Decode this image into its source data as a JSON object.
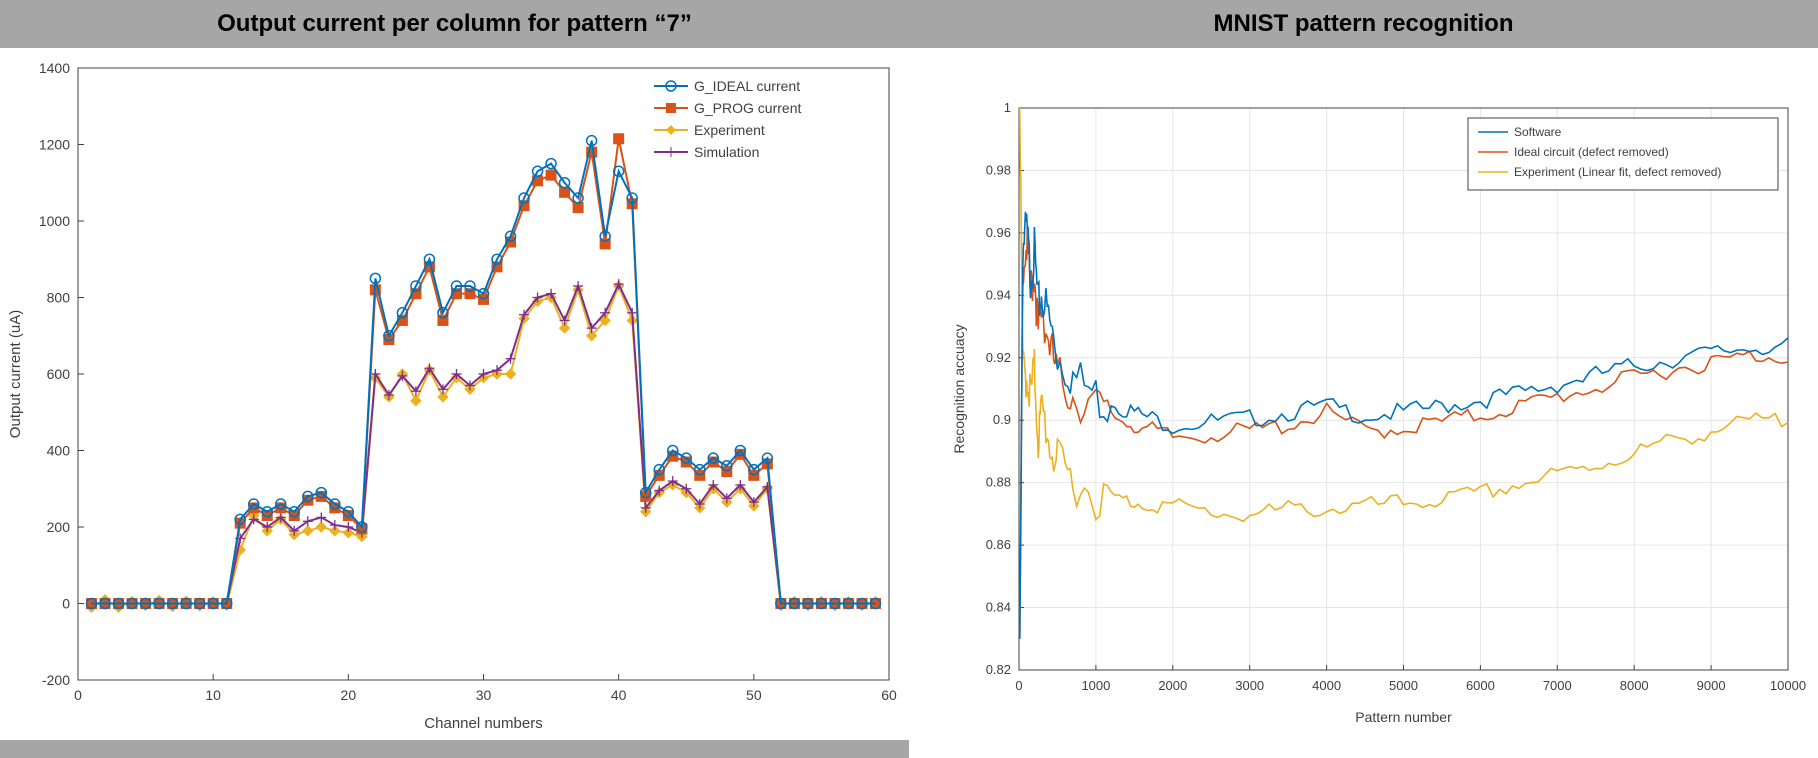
{
  "header": {
    "left": "Output current per column for pattern “7”",
    "right": "MNIST pattern recognition"
  },
  "left_chart": {
    "type": "line",
    "xlabel": "Channel numbers",
    "ylabel": "Output current (uA)",
    "xlim": [
      0,
      60
    ],
    "ylim": [
      -200,
      1400
    ],
    "xtick_step": 10,
    "ytick_step": 200,
    "tick_fontsize": 14,
    "label_fontsize": 15,
    "colors": {
      "g_ideal": "#0072bd",
      "g_prog": "#d95319",
      "experiment": "#edb120",
      "simulation": "#7e2f8e",
      "axis": "#404040",
      "text": "#404040",
      "bg": "#ffffff"
    },
    "legend": {
      "items": [
        {
          "key": "g_ideal",
          "label": "G_IDEAL current",
          "marker": "circle"
        },
        {
          "key": "g_prog",
          "label": "G_PROG current",
          "marker": "square"
        },
        {
          "key": "experiment",
          "label": "Experiment",
          "marker": "diamond"
        },
        {
          "key": "simulation",
          "label": "Simulation",
          "marker": "plus"
        }
      ],
      "fontsize": 14
    },
    "series": {
      "x": [
        1,
        2,
        3,
        4,
        5,
        6,
        7,
        8,
        9,
        10,
        11,
        12,
        13,
        14,
        15,
        16,
        17,
        18,
        19,
        20,
        21,
        22,
        23,
        24,
        25,
        26,
        27,
        28,
        29,
        30,
        31,
        32,
        33,
        34,
        35,
        36,
        37,
        38,
        39,
        40,
        41,
        42,
        43,
        44,
        45,
        46,
        47,
        48,
        49,
        50,
        51,
        52,
        53,
        54,
        55,
        56,
        57,
        58,
        59
      ],
      "g_ideal": [
        0,
        0,
        0,
        0,
        0,
        0,
        0,
        0,
        0,
        0,
        0,
        220,
        260,
        240,
        260,
        240,
        280,
        290,
        260,
        240,
        200,
        850,
        700,
        760,
        830,
        900,
        760,
        830,
        830,
        810,
        900,
        960,
        1060,
        1130,
        1150,
        1100,
        1060,
        1210,
        960,
        1130,
        1060,
        290,
        350,
        400,
        380,
        350,
        380,
        360,
        400,
        350,
        380,
        0,
        0,
        0,
        0,
        0,
        0,
        0,
        0
      ],
      "g_prog": [
        0,
        0,
        0,
        0,
        0,
        0,
        0,
        0,
        0,
        0,
        0,
        210,
        250,
        230,
        250,
        230,
        270,
        280,
        250,
        230,
        195,
        820,
        690,
        740,
        810,
        880,
        740,
        810,
        810,
        795,
        880,
        945,
        1040,
        1105,
        1120,
        1075,
        1035,
        1180,
        940,
        1215,
        1045,
        280,
        335,
        385,
        370,
        335,
        370,
        345,
        390,
        335,
        365,
        0,
        0,
        0,
        0,
        0,
        0,
        0,
        0
      ],
      "experiment": [
        -10,
        10,
        -10,
        5,
        -5,
        8,
        -8,
        6,
        -6,
        4,
        -4,
        140,
        230,
        190,
        220,
        180,
        190,
        200,
        190,
        185,
        175,
        590,
        540,
        600,
        530,
        610,
        540,
        590,
        560,
        590,
        600,
        600,
        745,
        790,
        800,
        720,
        820,
        700,
        740,
        830,
        740,
        240,
        290,
        310,
        290,
        250,
        300,
        265,
        300,
        255,
        300,
        -5,
        5,
        -5,
        5,
        -5,
        5,
        -5,
        5
      ],
      "simulation": [
        0,
        0,
        0,
        0,
        0,
        0,
        0,
        0,
        0,
        0,
        0,
        170,
        220,
        200,
        225,
        190,
        215,
        225,
        205,
        200,
        185,
        600,
        545,
        595,
        555,
        615,
        560,
        600,
        570,
        600,
        610,
        640,
        755,
        800,
        810,
        740,
        830,
        720,
        760,
        835,
        760,
        250,
        295,
        320,
        300,
        260,
        310,
        275,
        310,
        265,
        305,
        0,
        0,
        0,
        0,
        0,
        0,
        0,
        0
      ]
    },
    "line_width": 2,
    "marker_size": 5
  },
  "right_chart": {
    "type": "line",
    "xlabel": "Pattern number",
    "ylabel": "Recognition accuacy",
    "xlim": [
      0,
      10000
    ],
    "ylim": [
      0.82,
      1.0
    ],
    "xtick_step": 1000,
    "ytick_step": 0.02,
    "tick_fontsize": 13,
    "label_fontsize": 14,
    "colors": {
      "software": "#0072bd",
      "ideal": "#d95319",
      "experiment": "#edb120",
      "axis": "#404040",
      "grid": "#e6e6e6",
      "text": "#404040",
      "bg": "#ffffff"
    },
    "legend": {
      "box_border": "#404040",
      "fontsize": 12,
      "items": [
        {
          "key": "software",
          "label": "Software"
        },
        {
          "key": "ideal",
          "label": "Ideal circuit (defect removed)"
        },
        {
          "key": "experiment",
          "label": "Experiment (Linear fit, defect removed)"
        }
      ]
    },
    "line_width": 1.6,
    "series": {
      "x": [
        10,
        50,
        100,
        150,
        200,
        250,
        300,
        400,
        500,
        700,
        1000,
        1300,
        1600,
        2000,
        2500,
        3000,
        3500,
        4000,
        4500,
        5000,
        5500,
        6000,
        6500,
        7000,
        7500,
        8000,
        8500,
        9000,
        9500,
        10000
      ],
      "software": [
        0.83,
        0.96,
        0.965,
        0.95,
        0.958,
        0.94,
        0.945,
        0.935,
        0.925,
        0.918,
        0.912,
        0.906,
        0.903,
        0.9,
        0.901,
        0.902,
        0.904,
        0.906,
        0.903,
        0.904,
        0.906,
        0.908,
        0.91,
        0.913,
        0.916,
        0.919,
        0.921,
        0.923,
        0.925,
        0.925
      ],
      "ideal": [
        0.83,
        0.955,
        0.96,
        0.945,
        0.952,
        0.932,
        0.94,
        0.928,
        0.918,
        0.912,
        0.908,
        0.902,
        0.899,
        0.896,
        0.897,
        0.898,
        0.9,
        0.904,
        0.898,
        0.899,
        0.901,
        0.903,
        0.906,
        0.909,
        0.912,
        0.915,
        0.918,
        0.92,
        0.922,
        0.922
      ],
      "experiment": [
        1.0,
        0.92,
        0.918,
        0.912,
        0.92,
        0.898,
        0.908,
        0.896,
        0.89,
        0.885,
        0.88,
        0.876,
        0.875,
        0.874,
        0.872,
        0.871,
        0.873,
        0.873,
        0.874,
        0.875,
        0.876,
        0.878,
        0.881,
        0.884,
        0.887,
        0.891,
        0.895,
        0.898,
        0.901,
        0.901
      ]
    }
  }
}
